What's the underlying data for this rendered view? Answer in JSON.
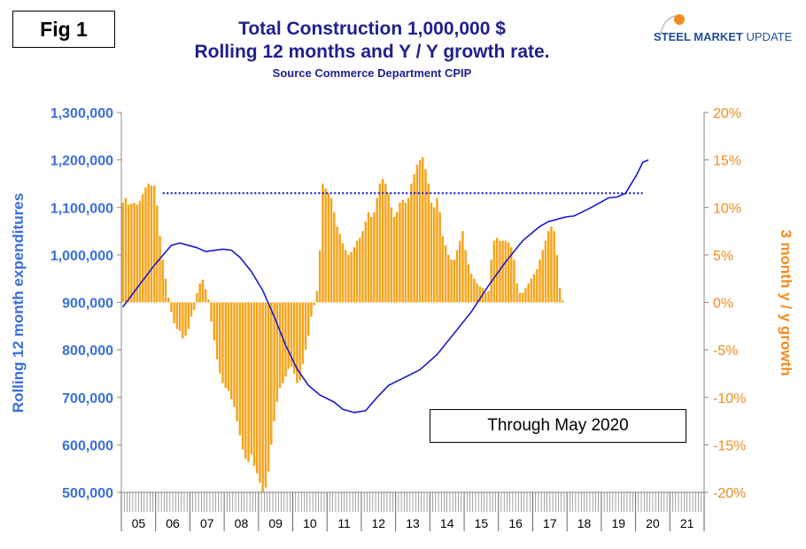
{
  "header": {
    "fig_label": "Fig 1",
    "title_line1": "Total Construction 1,000,000 $",
    "title_line2": "Rolling 12 months and Y / Y growth rate.",
    "subtitle": "Source Commerce Department CPIP",
    "logo_bold": "STEEL MARKET",
    "logo_rest": " UPDATE"
  },
  "annotation": "Through May 2020",
  "colors": {
    "bars": "#f5a31a",
    "line": "#1a1acd",
    "left_axis": "#3a6fd8",
    "right_axis": "#f28c1e",
    "title": "#1f1f8f"
  },
  "chart_data": {
    "type": "bar+line",
    "x_categories": [
      "05",
      "06",
      "07",
      "08",
      "09",
      "10",
      "11",
      "12",
      "13",
      "14",
      "15",
      "16",
      "17",
      "18",
      "19",
      "20",
      "21"
    ],
    "left_axis": {
      "label": "Rolling 12 month expenditures",
      "ticks": [
        "500,000",
        "600,000",
        "700,000",
        "800,000",
        "900,000",
        "1,000,000",
        "1,100,000",
        "1,200,000",
        "1,300,000"
      ],
      "ylim": [
        500000,
        1300000
      ]
    },
    "right_axis": {
      "label": "3 month y / y growth",
      "ticks": [
        "-20%",
        "-15%",
        "-10%",
        "-5%",
        "0%",
        "5%",
        "10%",
        "15%",
        "20%"
      ],
      "ylim": [
        -20,
        20
      ]
    },
    "series": [
      {
        "type": "bar",
        "axis": "right",
        "start": "2005-01",
        "values_pct": [
          10.5,
          11.0,
          10.3,
          10.4,
          10.5,
          10.3,
          10.7,
          11.4,
          12.1,
          12.5,
          12.3,
          12.3,
          10.2,
          7.0,
          4.5,
          2.5,
          0.5,
          -1.0,
          -2.2,
          -2.8,
          -3.0,
          -3.8,
          -3.5,
          -2.8,
          -1.5,
          -0.8,
          1.0,
          2.0,
          2.4,
          1.4,
          0.3,
          -2.0,
          -4.0,
          -6.0,
          -7.5,
          -8.5,
          -9.0,
          -9.3,
          -10.2,
          -11.0,
          -12.5,
          -14.0,
          -15.5,
          -16.5,
          -16.8,
          -16.0,
          -17.2,
          -18.0,
          -19.0,
          -20.0,
          -19.5,
          -17.8,
          -15.0,
          -12.5,
          -10.5,
          -9.0,
          -8.5,
          -7.8,
          -7.0,
          -6.8,
          -7.5,
          -8.5,
          -8.2,
          -6.5,
          -5.0,
          -3.5,
          -1.5,
          -0.3,
          1.2,
          5.5,
          12.5,
          12.0,
          11.5,
          11.0,
          9.5,
          8.0,
          7.2,
          6.2,
          5.5,
          5.0,
          5.3,
          5.8,
          6.5,
          6.8,
          7.5,
          8.5,
          9.5,
          9.0,
          9.5,
          11.0,
          12.5,
          13.0,
          12.5,
          11.5,
          10.0,
          9.0,
          9.5,
          10.5,
          10.8,
          10.5,
          11.0,
          12.5,
          13.5,
          14.5,
          15.0,
          15.3,
          14.0,
          12.5,
          10.5,
          10.0,
          11.0,
          9.5,
          7.0,
          6.0,
          5.0,
          4.5,
          4.5,
          5.5,
          6.5,
          7.5,
          5.5,
          4.0,
          3.0,
          2.5,
          2.0,
          1.7,
          1.5,
          1.0,
          1.2,
          4.5,
          6.5,
          6.8,
          6.5,
          6.5,
          6.5,
          6.3,
          5.8,
          4.5,
          2.0,
          1.0,
          1.0,
          1.5,
          2.0,
          2.5,
          3.0,
          3.5,
          4.5,
          5.5,
          6.5,
          7.5,
          8.0,
          7.5,
          5.0,
          1.5,
          0.2
        ]
      },
      {
        "type": "line",
        "axis": "left",
        "points": [
          [
            "2005-01",
            890000
          ],
          [
            "2005-06",
            930000
          ],
          [
            "2005-12",
            978000
          ],
          [
            "2006-06",
            1020000
          ],
          [
            "2006-09",
            1025000
          ],
          [
            "2007-03",
            1015000
          ],
          [
            "2007-06",
            1007000
          ],
          [
            "2007-12",
            1012000
          ],
          [
            "2008-03",
            1010000
          ],
          [
            "2008-06",
            995000
          ],
          [
            "2008-10",
            965000
          ],
          [
            "2009-02",
            925000
          ],
          [
            "2009-06",
            870000
          ],
          [
            "2009-10",
            810000
          ],
          [
            "2010-02",
            760000
          ],
          [
            "2010-06",
            725000
          ],
          [
            "2010-10",
            705000
          ],
          [
            "2011-03",
            690000
          ],
          [
            "2011-06",
            675000
          ],
          [
            "2011-10",
            668000
          ],
          [
            "2012-02",
            672000
          ],
          [
            "2012-06",
            700000
          ],
          [
            "2012-10",
            725000
          ],
          [
            "2013-03",
            740000
          ],
          [
            "2013-09",
            758000
          ],
          [
            "2014-03",
            790000
          ],
          [
            "2014-09",
            835000
          ],
          [
            "2015-03",
            880000
          ],
          [
            "2015-09",
            935000
          ],
          [
            "2016-03",
            985000
          ],
          [
            "2016-09",
            1030000
          ],
          [
            "2017-03",
            1060000
          ],
          [
            "2017-06",
            1070000
          ],
          [
            "2017-12",
            1080000
          ],
          [
            "2018-03",
            1082000
          ],
          [
            "2018-09",
            1100000
          ],
          [
            "2019-03",
            1120000
          ],
          [
            "2019-06",
            1122000
          ],
          [
            "2019-09",
            1130000
          ],
          [
            "2020-01",
            1170000
          ],
          [
            "2020-03",
            1195000
          ],
          [
            "2020-05",
            1200000
          ]
        ]
      },
      {
        "type": "reference-line",
        "axis": "left",
        "style": "dotted",
        "x_start": "2006-03",
        "x_end": "2020-03",
        "value": 1130000
      }
    ],
    "grid": false,
    "legend": "none"
  }
}
